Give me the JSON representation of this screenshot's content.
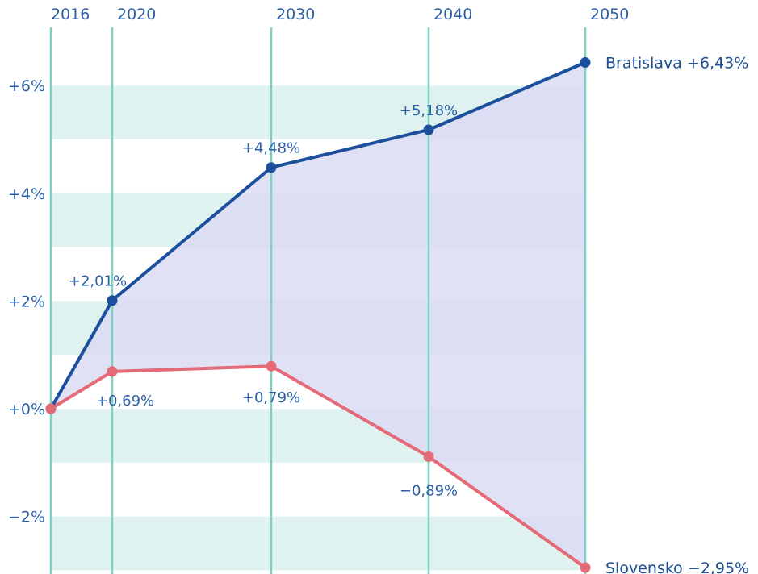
{
  "chart_data": {
    "type": "line",
    "x": [
      2016,
      2020,
      2030,
      2040,
      2050
    ],
    "x_tick_labels": [
      "2016",
      "2020",
      "2030",
      "2040",
      "2050"
    ],
    "y_tick_values": [
      6,
      4,
      2,
      0,
      -2
    ],
    "y_tick_labels": [
      "+6%",
      "+4%",
      "+2%",
      "+0%",
      "−2%"
    ],
    "ylim": [
      -3,
      7
    ],
    "series": [
      {
        "id": "bratislava",
        "values": [
          0,
          2.01,
          4.48,
          5.18,
          6.43
        ],
        "point_labels": [
          "",
          "+2,01%",
          "+4,48%",
          "+5,18%",
          ""
        ],
        "end_label": "Bratislava +6,43%",
        "color": "#1c4f9c"
      },
      {
        "id": "slovensko",
        "values": [
          0,
          0.69,
          0.79,
          -0.89,
          -2.95
        ],
        "point_labels": [
          "",
          "+0,69%",
          "+0,79%",
          "−0,89%",
          ""
        ],
        "end_label": "Slovensko −2,95%",
        "color": "#e46a78"
      }
    ],
    "colors": {
      "band": "#dff2ef",
      "gridline": "#7fd0c3",
      "fill_between": "#d4e9ef",
      "fill_between_overlay": "#dcdcf3"
    }
  }
}
